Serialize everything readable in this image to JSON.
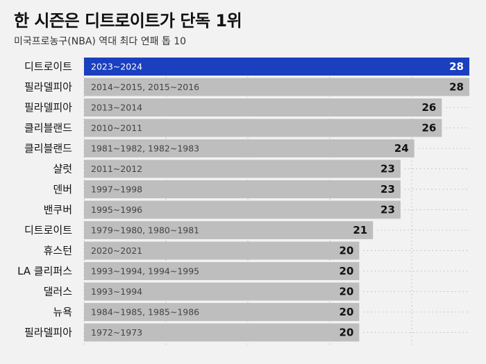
{
  "title": "한 시즌은 디트로이트가 단독 1위",
  "subtitle": "미국프로농구(NBA) 역대 최다 연패 톱 10",
  "colors": {
    "highlight": "#1a3fbf",
    "bar": "#bebebe",
    "background": "#f2f2f2",
    "gridline": "#b8b8b8"
  },
  "chart_data": {
    "type": "bar",
    "orientation": "horizontal",
    "grid": "dotted vertical gridlines",
    "xlim": [
      0,
      28
    ],
    "categories": [
      "디트로이트",
      "필라델피아",
      "필라델피아",
      "클리블랜드",
      "클리블랜드",
      "샬럿",
      "덴버",
      "밴쿠버",
      "디트로이트",
      "휴스턴",
      "LA 클리퍼스",
      "댈러스",
      "뉴욕",
      "필라델피아"
    ],
    "seasons": [
      "2023~2024",
      "2014~2015, 2015~2016",
      "2013~2014",
      "2010~2011",
      "1981~1982, 1982~1983",
      "2011~2012",
      "1997~1998",
      "1995~1996",
      "1979~1980, 1980~1981",
      "2020~2021",
      "1993~1994, 1994~1995",
      "1993~1994",
      "1984~1985, 1985~1986",
      "1972~1973"
    ],
    "values": [
      28,
      28,
      26,
      26,
      24,
      23,
      23,
      23,
      21,
      20,
      20,
      20,
      20,
      20
    ],
    "highlight_index": 0
  }
}
